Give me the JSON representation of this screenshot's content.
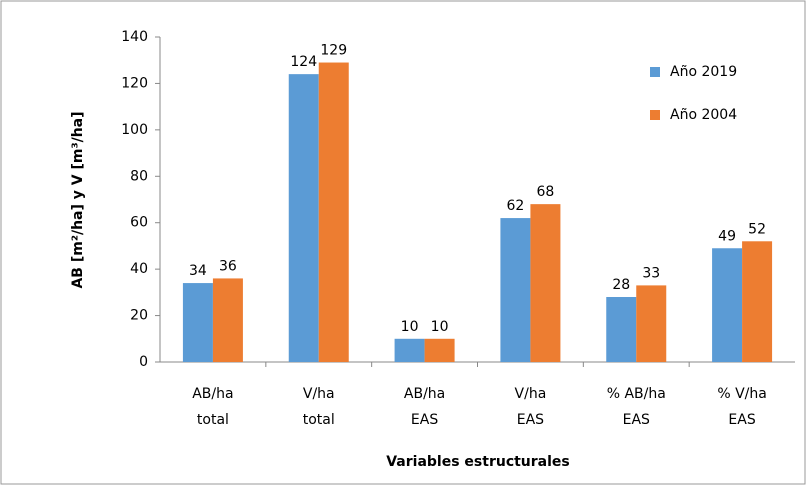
{
  "chart_data": {
    "type": "bar",
    "y_label": "AB [m²/ha] y V [m³/ha]",
    "x_label": "Variables estructurales",
    "categories": [
      [
        "AB/ha",
        "total"
      ],
      [
        "V/ha",
        "total"
      ],
      [
        "AB/ha",
        "EAS"
      ],
      [
        "V/ha",
        "EAS"
      ],
      [
        "% AB/ha",
        "EAS"
      ],
      [
        "% V/ha",
        "EAS"
      ]
    ],
    "series": [
      {
        "name": "Año 2019",
        "color": "#5b9bd5",
        "values": [
          34,
          124,
          10,
          62,
          28,
          49
        ]
      },
      {
        "name": "Año 2004",
        "color": "#ed7d31",
        "values": [
          36,
          129,
          10,
          68,
          33,
          52
        ]
      }
    ],
    "ylim": [
      0,
      140
    ],
    "yticks": [
      0,
      20,
      40,
      60,
      80,
      100,
      120,
      140
    ],
    "grid": false,
    "legend": "upper right"
  }
}
